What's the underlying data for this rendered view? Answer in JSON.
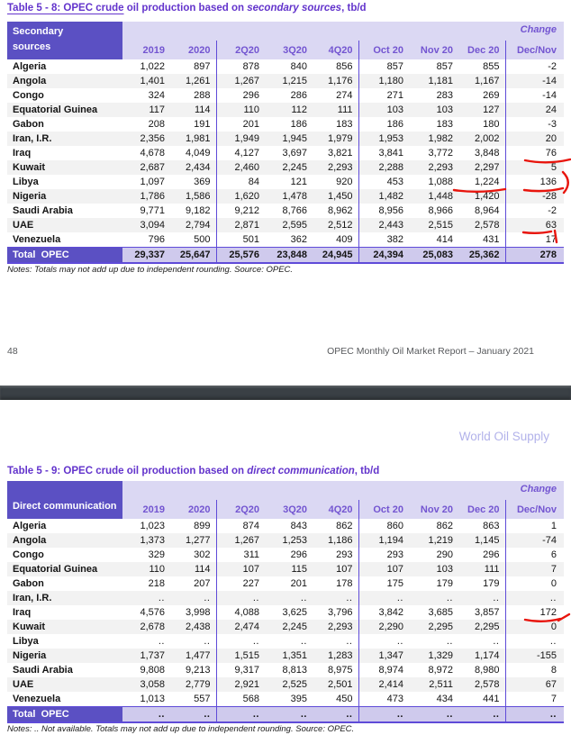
{
  "page": {
    "footer_page_number": "48",
    "footer_report_title": "OPEC Monthly Oil Market Report – January 2021",
    "section_heading": "World Oil Supply"
  },
  "colors": {
    "title_purple": "#6334cc",
    "header_cell": "#5b50c3",
    "header_lavender": "#dbd8f3",
    "column_text": "#7355d1",
    "divider_purple": "#5f4bd8",
    "row_stripe": "#f2f2f2",
    "total_row_bg": "#cfcaed",
    "section_heading": "#b2b2ea",
    "separator_bar": "#3a4045",
    "annotation_red": "#e8140c"
  },
  "tables": [
    {
      "id": "secondary-sources",
      "title": {
        "link": "Table 5 - 8: OPEC crude",
        "link_underlined": true,
        "mid": " oil production based on ",
        "italic": "secondary sources",
        "suffix": ", tb/d"
      },
      "header": {
        "label": "Secondary\nsources",
        "change_line1": "Change",
        "change_line2": "Dec/Nov",
        "columns": [
          "2019",
          "2020",
          "2Q20",
          "3Q20",
          "4Q20",
          "Oct 20",
          "Nov 20",
          "Dec 20"
        ]
      },
      "rows": [
        {
          "label": "Algeria",
          "values": [
            "1,022",
            "897",
            "878",
            "840",
            "856",
            "857",
            "857",
            "855",
            "-2"
          ]
        },
        {
          "label": "Angola",
          "values": [
            "1,401",
            "1,261",
            "1,267",
            "1,215",
            "1,176",
            "1,180",
            "1,181",
            "1,167",
            "-14"
          ]
        },
        {
          "label": "Congo",
          "values": [
            "324",
            "288",
            "296",
            "286",
            "274",
            "271",
            "283",
            "269",
            "-14"
          ]
        },
        {
          "label": "Equatorial Guinea",
          "values": [
            "117",
            "114",
            "110",
            "112",
            "111",
            "103",
            "103",
            "127",
            "24"
          ]
        },
        {
          "label": "Gabon",
          "values": [
            "208",
            "191",
            "201",
            "186",
            "183",
            "186",
            "183",
            "180",
            "-3"
          ]
        },
        {
          "label": "Iran, I.R.",
          "values": [
            "2,356",
            "1,981",
            "1,949",
            "1,945",
            "1,979",
            "1,953",
            "1,982",
            "2,002",
            "20"
          ]
        },
        {
          "label": "Iraq",
          "values": [
            "4,678",
            "4,049",
            "4,127",
            "3,697",
            "3,821",
            "3,841",
            "3,772",
            "3,848",
            "76"
          ]
        },
        {
          "label": "Kuwait",
          "values": [
            "2,687",
            "2,434",
            "2,460",
            "2,245",
            "2,293",
            "2,288",
            "2,293",
            "2,297",
            "5"
          ]
        },
        {
          "label": "Libya",
          "values": [
            "1,097",
            "369",
            "84",
            "121",
            "920",
            "453",
            "1,088",
            "1,224",
            "136"
          ]
        },
        {
          "label": "Nigeria",
          "values": [
            "1,786",
            "1,586",
            "1,620",
            "1,478",
            "1,450",
            "1,482",
            "1,448",
            "1,420",
            "-28"
          ]
        },
        {
          "label": "Saudi Arabia",
          "values": [
            "9,771",
            "9,182",
            "9,212",
            "8,766",
            "8,962",
            "8,956",
            "8,966",
            "8,964",
            "-2"
          ]
        },
        {
          "label": "UAE",
          "values": [
            "3,094",
            "2,794",
            "2,871",
            "2,595",
            "2,512",
            "2,443",
            "2,515",
            "2,578",
            "63"
          ]
        },
        {
          "label": "Venezuela",
          "values": [
            "796",
            "500",
            "501",
            "362",
            "409",
            "382",
            "414",
            "431",
            "17"
          ]
        }
      ],
      "total": {
        "label": "Total  OPEC",
        "values": [
          "29,337",
          "25,647",
          "25,576",
          "23,848",
          "24,945",
          "24,394",
          "25,083",
          "25,362",
          "278"
        ]
      },
      "notes": "Notes: Totals may not add up due to independent rounding. Source: OPEC."
    },
    {
      "id": "direct-communication",
      "title": {
        "link": "Table 5 - 9: OPEC crude",
        "link_underlined": false,
        "mid": " oil production based on ",
        "italic": "direct communication",
        "suffix": ", tb/d"
      },
      "header": {
        "label": "Direct communication",
        "change_line1": "Change",
        "change_line2": "Dec/Nov",
        "columns": [
          "2019",
          "2020",
          "2Q20",
          "3Q20",
          "4Q20",
          "Oct 20",
          "Nov 20",
          "Dec 20"
        ]
      },
      "rows": [
        {
          "label": "Algeria",
          "values": [
            "1,023",
            "899",
            "874",
            "843",
            "862",
            "860",
            "862",
            "863",
            "1"
          ]
        },
        {
          "label": "Angola",
          "values": [
            "1,373",
            "1,277",
            "1,267",
            "1,253",
            "1,186",
            "1,194",
            "1,219",
            "1,145",
            "-74"
          ]
        },
        {
          "label": "Congo",
          "values": [
            "329",
            "302",
            "311",
            "296",
            "293",
            "293",
            "290",
            "296",
            "6"
          ]
        },
        {
          "label": "Equatorial Guinea",
          "values": [
            "110",
            "114",
            "107",
            "115",
            "107",
            "107",
            "103",
            "111",
            "7"
          ]
        },
        {
          "label": "Gabon",
          "values": [
            "218",
            "207",
            "227",
            "201",
            "178",
            "175",
            "179",
            "179",
            "0"
          ]
        },
        {
          "label": "Iran, I.R.",
          "values": [
            "..",
            "..",
            "..",
            "..",
            "..",
            "..",
            "..",
            "..",
            ".."
          ]
        },
        {
          "label": "Iraq",
          "values": [
            "4,576",
            "3,998",
            "4,088",
            "3,625",
            "3,796",
            "3,842",
            "3,685",
            "3,857",
            "172"
          ]
        },
        {
          "label": "Kuwait",
          "values": [
            "2,678",
            "2,438",
            "2,474",
            "2,245",
            "2,293",
            "2,290",
            "2,295",
            "2,295",
            "0"
          ]
        },
        {
          "label": "Libya",
          "values": [
            "..",
            "..",
            "..",
            "..",
            "..",
            "..",
            "..",
            "..",
            ".."
          ]
        },
        {
          "label": "Nigeria",
          "values": [
            "1,737",
            "1,477",
            "1,515",
            "1,351",
            "1,283",
            "1,347",
            "1,329",
            "1,174",
            "-155"
          ]
        },
        {
          "label": "Saudi Arabia",
          "values": [
            "9,808",
            "9,213",
            "9,317",
            "8,813",
            "8,975",
            "8,974",
            "8,972",
            "8,980",
            "8"
          ]
        },
        {
          "label": "UAE",
          "values": [
            "3,058",
            "2,779",
            "2,921",
            "2,525",
            "2,501",
            "2,414",
            "2,511",
            "2,578",
            "67"
          ]
        },
        {
          "label": "Venezuela",
          "values": [
            "1,013",
            "557",
            "568",
            "395",
            "450",
            "473",
            "434",
            "441",
            "7"
          ]
        }
      ],
      "total": {
        "label": "Total  OPEC",
        "values": [
          "..",
          "..",
          "..",
          "..",
          "..",
          "..",
          "..",
          "..",
          ".."
        ]
      },
      "notes": "Notes:  .. Not available. Totals may not add up due to independent rounding. Source: OPEC."
    }
  ]
}
